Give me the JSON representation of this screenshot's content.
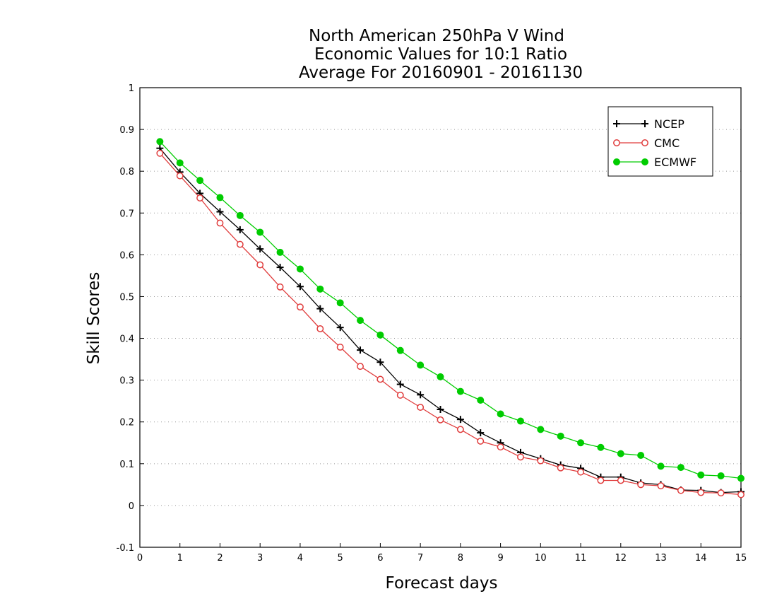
{
  "chart_data": {
    "type": "line",
    "title": [
      "North American 250hPa V Wind",
      "Economic Values for 10:1 Ratio",
      "Average For 20160901 - 20161130"
    ],
    "xlabel": "Forecast days",
    "ylabel": "Skill Scores",
    "xlim": [
      0,
      15
    ],
    "ylim": [
      -0.1,
      1
    ],
    "xticks": [
      "0",
      "1",
      "2",
      "3",
      "4",
      "5",
      "6",
      "7",
      "8",
      "9",
      "10",
      "11",
      "12",
      "13",
      "14",
      "15"
    ],
    "yticks": [
      "-0.1",
      "0",
      "0.1",
      "0.2",
      "0.3",
      "0.4",
      "0.5",
      "0.6",
      "0.7",
      "0.8",
      "0.9",
      "1"
    ],
    "grid": true,
    "legend_position": "top-right",
    "x": [
      0.5,
      1,
      1.5,
      2,
      2.5,
      3,
      3.5,
      4,
      4.5,
      5,
      5.5,
      6,
      6.5,
      7,
      7.5,
      8,
      8.5,
      9,
      9.5,
      10,
      10.5,
      11,
      11.5,
      12,
      12.5,
      13,
      13.5,
      14,
      14.5,
      15
    ],
    "series": [
      {
        "name": "NCEP",
        "color": "#000000",
        "marker": "plus",
        "values": [
          0.855,
          0.798,
          0.747,
          0.703,
          0.66,
          0.614,
          0.57,
          0.524,
          0.471,
          0.426,
          0.372,
          0.343,
          0.29,
          0.265,
          0.23,
          0.206,
          0.174,
          0.15,
          0.127,
          0.112,
          0.097,
          0.089,
          0.068,
          0.068,
          0.054,
          0.05,
          0.037,
          0.036,
          0.031,
          0.033
        ]
      },
      {
        "name": "CMC",
        "color": "#e03c3c",
        "marker": "open-circle",
        "values": [
          0.843,
          0.789,
          0.736,
          0.676,
          0.625,
          0.576,
          0.523,
          0.475,
          0.423,
          0.379,
          0.333,
          0.302,
          0.264,
          0.235,
          0.205,
          0.182,
          0.154,
          0.14,
          0.116,
          0.107,
          0.09,
          0.08,
          0.06,
          0.06,
          0.05,
          0.047,
          0.036,
          0.031,
          0.03,
          0.026
        ]
      },
      {
        "name": "ECMWF",
        "color": "#00cc00",
        "marker": "filled-circle",
        "values": [
          0.871,
          0.82,
          0.778,
          0.737,
          0.694,
          0.654,
          0.606,
          0.566,
          0.518,
          0.485,
          0.443,
          0.408,
          0.371,
          0.336,
          0.308,
          0.273,
          0.252,
          0.219,
          0.202,
          0.182,
          0.166,
          0.15,
          0.139,
          0.124,
          0.12,
          0.094,
          0.091,
          0.073,
          0.071,
          0.065
        ]
      }
    ]
  }
}
